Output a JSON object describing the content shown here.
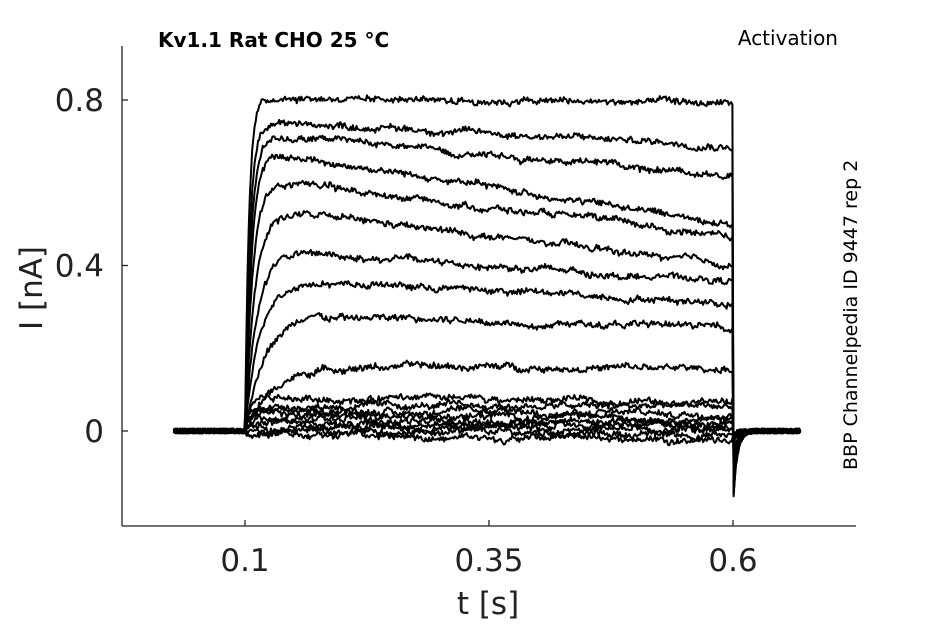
{
  "chart_data": {
    "type": "line",
    "title": "Kv1.1  Rat  CHO  25 °C",
    "subtitle": "Activation",
    "side_note": "BBP Channelpedia ID 9447 rep 2",
    "xlabel": "t [s]",
    "ylabel": "I [nA]",
    "xlim": [
      -0.0,
      0.7
    ],
    "ylim": [
      -0.23,
      0.93
    ],
    "x_ticks": [
      0.1,
      0.35,
      0.6
    ],
    "x_tick_labels": [
      "0.1",
      "0.35",
      "0.6"
    ],
    "y_ticks": [
      0,
      0.4,
      0.8
    ],
    "y_tick_labels": [
      "0",
      "0.4",
      "0.8"
    ],
    "grid": false,
    "pulse": {
      "start": 0.1,
      "end": 0.6
    },
    "baseline_range": [
      0.027,
      0.67
    ],
    "series": [
      {
        "pre": 0.0,
        "peak": -0.01,
        "end": -0.02,
        "tau": 0.004,
        "tail": -0.01
      },
      {
        "pre": 0.0,
        "peak": 0.0,
        "end": -0.01,
        "tau": 0.004,
        "tail": -0.01
      },
      {
        "pre": 0.0,
        "peak": 0.01,
        "end": 0.0,
        "tau": 0.004,
        "tail": -0.01
      },
      {
        "pre": 0.0,
        "peak": 0.02,
        "end": 0.01,
        "tau": 0.004,
        "tail": -0.02
      },
      {
        "pre": 0.0,
        "peak": 0.03,
        "end": 0.02,
        "tau": 0.004,
        "tail": -0.02
      },
      {
        "pre": 0.0,
        "peak": 0.04,
        "end": 0.03,
        "tau": 0.004,
        "tail": -0.02
      },
      {
        "pre": 0.0,
        "peak": 0.05,
        "end": 0.04,
        "tau": 0.004,
        "tail": -0.03
      },
      {
        "pre": 0.0,
        "peak": 0.06,
        "end": 0.06,
        "tau": 0.004,
        "tail": -0.03
      },
      {
        "pre": 0.0,
        "peak": 0.08,
        "end": 0.07,
        "tau": 0.004,
        "tail": -0.04
      },
      {
        "pre": 0.0,
        "peak": 0.16,
        "end": 0.15,
        "tau": 0.03,
        "tail": -0.06
      },
      {
        "pre": 0.0,
        "peak": 0.28,
        "end": 0.25,
        "tau": 0.02,
        "tail": -0.08
      },
      {
        "pre": 0.0,
        "peak": 0.37,
        "end": 0.31,
        "tau": 0.015,
        "tail": -0.1
      },
      {
        "pre": 0.0,
        "peak": 0.44,
        "end": 0.36,
        "tau": 0.012,
        "tail": -0.12
      },
      {
        "pre": 0.0,
        "peak": 0.54,
        "end": 0.4,
        "tau": 0.01,
        "tail": -0.13
      },
      {
        "pre": 0.0,
        "peak": 0.61,
        "end": 0.47,
        "tau": 0.008,
        "tail": -0.15
      },
      {
        "pre": 0.0,
        "peak": 0.68,
        "end": 0.5,
        "tau": 0.007,
        "tail": -0.16
      },
      {
        "pre": 0.0,
        "peak": 0.72,
        "end": 0.62,
        "tau": 0.006,
        "tail": -0.17
      },
      {
        "pre": 0.0,
        "peak": 0.75,
        "end": 0.69,
        "tau": 0.005,
        "tail": -0.18
      },
      {
        "pre": 0.0,
        "peak": 0.81,
        "end": 0.79,
        "tau": 0.004,
        "tail": -0.19
      }
    ]
  }
}
